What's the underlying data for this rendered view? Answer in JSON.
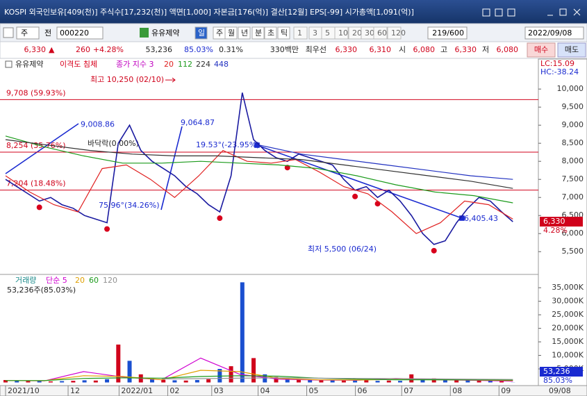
{
  "title_bar": {
    "text": "KOSPI 외국인보유[409(천)] 주식수[17,232(천)] 액면[1,000] 자본금[176(억)] 결산[12월] EPS[-99] 시가총액[1,091(억)]"
  },
  "toolbar": {
    "code_type": "주",
    "prev": "전",
    "code": "000220",
    "name": "유유제약",
    "periods": [
      "일",
      "주",
      "월",
      "년",
      "분",
      "초",
      "틱"
    ],
    "intervals": [
      "1",
      "3",
      "5",
      "10",
      "20",
      "30",
      "60",
      "120"
    ],
    "count": "219/600",
    "date": "2022/09/08"
  },
  "quote": {
    "price": "6,330",
    "arrow": "▲",
    "change": "260",
    "rate": "+4.28%",
    "volume": "53,236",
    "vol_rate": "85.03%",
    "turnover": "0.31%",
    "amount": "330백만",
    "best_label": "최우선",
    "ask": "6,330",
    "bid": "6,310",
    "open_label": "시",
    "open": "6,080",
    "high_label": "고",
    "high": "6,330",
    "low_label": "저",
    "low": "6,080",
    "buy": "매수",
    "sell": "매도"
  },
  "chart_data": [
    {
      "type": "line",
      "legend": [
        {
          "name": "이격도 침체",
          "color": "#d8001c"
        },
        {
          "name": "종가 지수 3",
          "color": "#c000c0"
        }
      ],
      "right_labels": [
        "LC:15.09",
        "HC:-38.24"
      ],
      "last_label": "6,330",
      "last_rate": "4.28%",
      "series": [
        {
          "name": "유유제약",
          "color": "#1a1aa0",
          "values": [
            7500,
            7300,
            7100,
            6900,
            7000,
            6800,
            6700,
            6500,
            6400,
            6300,
            8500,
            9000,
            8300,
            8000,
            7800,
            7600,
            7300,
            7100,
            6800,
            6600,
            7600,
            9900,
            8600,
            8300,
            8100,
            8000,
            8200,
            8100,
            8000,
            7900,
            7500,
            7200,
            7300,
            7000,
            7200,
            6900,
            6500,
            6000,
            5700,
            5800,
            6300,
            6700,
            7000,
            6900,
            6600,
            6330
          ]
        },
        {
          "name": "20",
          "color": "#e02020",
          "values": [
            7600,
            7150,
            6800,
            6600,
            7800,
            7900,
            7500,
            7000,
            7600,
            8300,
            8000,
            7950,
            8050,
            7700,
            7300,
            7100,
            6600,
            6000,
            6300,
            6900,
            6800,
            6400
          ]
        },
        {
          "name": "112",
          "color": "#1a9a1a",
          "values": [
            8700,
            8400,
            8150,
            7950,
            7950,
            8000,
            7950,
            7900,
            7800,
            7600,
            7350,
            7150,
            7050,
            6850
          ]
        },
        {
          "name": "224",
          "color": "#303030",
          "values": [
            8600,
            8450,
            8300,
            8200,
            8150,
            8150,
            8100,
            8050,
            7900,
            7750,
            7600,
            7450,
            7250
          ]
        },
        {
          "name": "448",
          "color": "#2030c0",
          "values": [
            null,
            null,
            null,
            null,
            null,
            null,
            8450,
            8200,
            8050,
            7900,
            7750,
            7600,
            7500
          ]
        }
      ],
      "xlim": [
        0,
        230
      ],
      "xticks": [
        {
          "value": 0,
          "label": "2021/10"
        },
        {
          "value": 27,
          "label": "12"
        },
        {
          "value": 49,
          "label": "2022/01"
        },
        {
          "value": 70,
          "label": "02"
        },
        {
          "value": 89,
          "label": "03"
        },
        {
          "value": 109,
          "label": "04"
        },
        {
          "value": 130,
          "label": "05"
        },
        {
          "value": 151,
          "label": "06"
        },
        {
          "value": 171,
          "label": "07"
        },
        {
          "value": 192,
          "label": "08"
        },
        {
          "value": 213,
          "label": "09"
        }
      ],
      "last_date": "09/08",
      "ylim": [
        4870,
        10830
      ],
      "yticks": [
        {
          "value": 5500,
          "label": "5,500"
        },
        {
          "value": 6000,
          "label": "6,000"
        },
        {
          "value": 6500,
          "label": "6,500"
        },
        {
          "value": 7000,
          "label": "7,000"
        },
        {
          "value": 7500,
          "label": "7,500"
        },
        {
          "value": 8000,
          "label": "8,000"
        },
        {
          "value": 8500,
          "label": "8,500"
        },
        {
          "value": 9000,
          "label": "9,000"
        },
        {
          "value": 9500,
          "label": "9,500"
        },
        {
          "value": 10000,
          "label": "10,000"
        }
      ],
      "annotations": [
        {
          "text": "최고 10,250 (02/10)",
          "value": 10250
        },
        {
          "text": "9,708 (59.93%)",
          "value": 9708
        },
        {
          "text": "8,254 (35.76%)",
          "value": 8254
        },
        {
          "text": "7,204 (18.48%)",
          "value": 7204
        },
        {
          "text": "9,008.86",
          "value": 9008.86
        },
        {
          "text": "9,064.87",
          "value": 9064.87
        },
        {
          "text": "바닥락(0.00%)"
        },
        {
          "text": "19.53°(-23.95%)"
        },
        {
          "text": "75.96°(34.26%)"
        },
        {
          "text": "6,405.43",
          "value": 6405.43
        },
        {
          "text": "최저 5,500 (06/24)",
          "value": 5500
        }
      ]
    },
    {
      "type": "bar",
      "info": "53,236주(85.03%)",
      "last_label": "53,236",
      "last_rate": "85.03%",
      "series": [
        {
          "name": "거래량",
          "color": "#1a4fd0",
          "values": [
            900000,
            600000,
            500000,
            700000,
            400000,
            500000,
            600000,
            800000,
            700000,
            1200000,
            14000000,
            8000000,
            3000000,
            1500000,
            1000000,
            800000,
            700000,
            900000,
            1200000,
            5000000,
            6000000,
            37000000,
            9000000,
            3000000,
            2000000,
            1500000,
            1200000,
            1000000,
            900000,
            800000,
            900000,
            700000,
            800000,
            600000,
            700000,
            600000,
            3000000,
            1200000,
            1500000,
            900000,
            1000000,
            1100000,
            800000,
            700000,
            600000,
            53236
          ]
        },
        {
          "name": "단순 5",
          "color": "#d000d0",
          "values": [
            700000,
            600000,
            4000000,
            2000000,
            1000000,
            9000000,
            3000000,
            1200000,
            900000,
            800000,
            1500000,
            1000000,
            800000,
            500000
          ]
        },
        {
          "name": "20",
          "color": "#e0a000",
          "values": [
            700000,
            650000,
            2500000,
            2200000,
            1000000,
            4500000,
            4000000,
            1500000,
            1000000,
            900000,
            1100000,
            1000000,
            900000,
            700000
          ]
        },
        {
          "name": "60",
          "color": "#1a9a1a",
          "values": [
            700000,
            700000,
            1500000,
            1700000,
            1600000,
            2200000,
            2500000,
            2300000,
            1600000,
            1200000,
            1000000,
            1000000,
            950000,
            900000
          ]
        },
        {
          "name": "120",
          "color": "#909090",
          "values": [
            null,
            null,
            null,
            null,
            1300000,
            1400000,
            1600000,
            1700000,
            1600000,
            1500000,
            1400000,
            1300000,
            1200000,
            1100000
          ]
        }
      ],
      "ylim": [
        0,
        39400000
      ],
      "yticks": [
        {
          "value": 5000000,
          "label": "5,000K"
        },
        {
          "value": 10000000,
          "label": "10,000K"
        },
        {
          "value": 15000000,
          "label": "15,000K"
        },
        {
          "value": 20000000,
          "label": "20,000K"
        },
        {
          "value": 25000000,
          "label": "25,000K"
        },
        {
          "value": 30000000,
          "label": "30,000K"
        },
        {
          "value": 35000000,
          "label": "35,000K"
        }
      ]
    }
  ]
}
